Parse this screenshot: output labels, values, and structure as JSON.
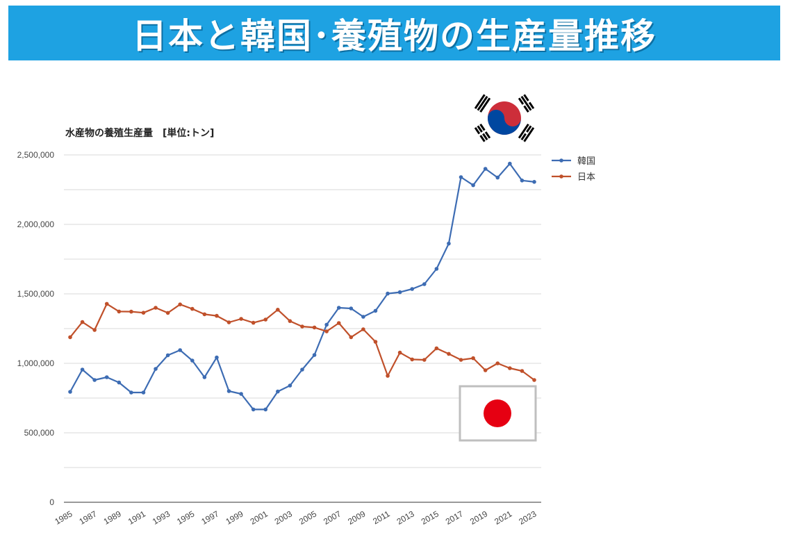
{
  "banner": {
    "title": "日本と韓国･養殖物の生産量推移"
  },
  "colors": {
    "banner": "#1ea2e2",
    "korea": "#3d6cb3",
    "japan": "#c0502a",
    "grid": "#d9d9d9"
  },
  "flags": [
    {
      "country": "韓国",
      "icon": "korea-flag-icon"
    },
    {
      "country": "日本",
      "icon": "japan-flag-icon"
    }
  ],
  "chart_data": {
    "type": "line",
    "subtitle": "水産物の養殖生産量　[単位:トン]",
    "x": [
      1985,
      1986,
      1987,
      1988,
      1989,
      1990,
      1991,
      1992,
      1993,
      1994,
      1995,
      1996,
      1997,
      1998,
      1999,
      2000,
      2001,
      2002,
      2003,
      2004,
      2005,
      2006,
      2007,
      2008,
      2009,
      2010,
      2011,
      2012,
      2013,
      2014,
      2015,
      2016,
      2017,
      2018,
      2019,
      2020,
      2021,
      2022,
      2023
    ],
    "x_tick_labels": [
      "1985",
      "1987",
      "1989",
      "1991",
      "1993",
      "1995",
      "1997",
      "1999",
      "2001",
      "2003",
      "2005",
      "2007",
      "2009",
      "2011",
      "2013",
      "2015",
      "2017",
      "2019",
      "2021",
      "2023"
    ],
    "ylim": [
      0,
      2500000
    ],
    "y_tick_labels": [
      "0",
      "500,000",
      "1,000,000",
      "1,500,000",
      "2,000,000",
      "2,500,000"
    ],
    "grid": true,
    "legend_position": "right",
    "series": [
      {
        "name": "韓国",
        "color": "#3d6cb3",
        "values": [
          795000,
          955000,
          880000,
          900000,
          862000,
          790000,
          790000,
          960000,
          1058000,
          1095000,
          1020000,
          900000,
          1042000,
          800000,
          780000,
          668000,
          668000,
          797000,
          840000,
          955000,
          1060000,
          1278000,
          1400000,
          1395000,
          1335000,
          1378000,
          1502000,
          1512000,
          1535000,
          1570000,
          1680000,
          1862000,
          2340000,
          2282000,
          2400000,
          2337000,
          2437000,
          2316000,
          2306000
        ]
      },
      {
        "name": "日本",
        "color": "#c0502a",
        "values": [
          1188000,
          1297000,
          1240000,
          1428000,
          1373000,
          1372000,
          1364000,
          1400000,
          1363000,
          1424000,
          1392000,
          1353000,
          1342000,
          1295000,
          1320000,
          1292000,
          1315000,
          1386000,
          1304000,
          1265000,
          1258000,
          1230000,
          1290000,
          1188000,
          1245000,
          1155000,
          910000,
          1077000,
          1028000,
          1025000,
          1108000,
          1068000,
          1025000,
          1037000,
          950000,
          1000000,
          965000,
          945000,
          880000
        ]
      }
    ]
  }
}
